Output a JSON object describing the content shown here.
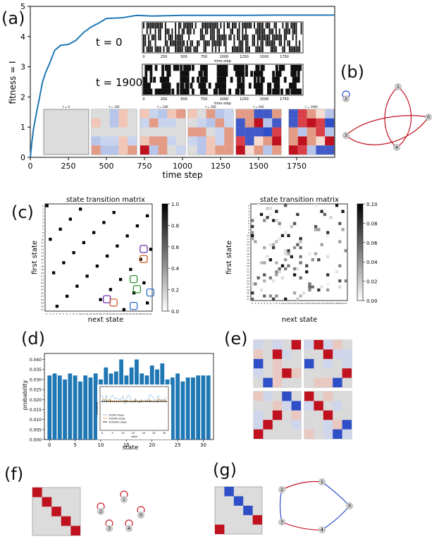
{
  "panels": {
    "a": "(a)",
    "b": "(b)",
    "c": "(c)",
    "d": "(d)",
    "e": "(e)",
    "f": "(f)",
    "g": "(g)"
  },
  "colors": {
    "line": "#1f77b4",
    "bar": "#1f77b4",
    "red": "#c0111f",
    "blue": "#2f4fc8",
    "grid": "#d8d8d8"
  },
  "chart_data": [
    {
      "type": "line",
      "panel": "a",
      "xlabel": "time step",
      "ylabel": "fitness = I",
      "xlim": [
        0,
        2000
      ],
      "ylim": [
        0,
        5
      ],
      "xticks": [
        "0",
        "250",
        "500",
        "750",
        "1000",
        "1250",
        "1500",
        "1750"
      ],
      "yticks": [
        "0",
        "1",
        "2",
        "3",
        "4",
        "5"
      ],
      "series": [
        {
          "x": [
            0,
            10,
            20,
            40,
            60,
            80,
            100,
            130,
            160,
            200,
            250,
            300,
            350,
            400,
            450,
            500,
            600,
            700,
            800,
            900,
            1000,
            1200,
            1400,
            1600,
            1800,
            2000
          ],
          "values": [
            0,
            0.5,
            0.9,
            1.5,
            2.0,
            2.5,
            2.8,
            3.2,
            3.5,
            3.7,
            3.75,
            3.9,
            4.1,
            4.3,
            4.5,
            4.6,
            4.65,
            4.68,
            4.68,
            4.69,
            4.7,
            4.7,
            4.7,
            4.71,
            4.71,
            4.71
          ]
        }
      ],
      "insets": [
        {
          "label": "t = 0",
          "xlabel": "time step",
          "xticks": [
            "0",
            "250",
            "500",
            "750",
            "1000",
            "1250",
            "1500",
            "1750"
          ]
        },
        {
          "label": "t = 1900",
          "xlabel": "time step",
          "xticks": [
            "0",
            "250",
            "500",
            "750",
            "1000",
            "1250",
            "1500",
            "1750"
          ]
        }
      ],
      "snapshots": [
        "t = 0",
        "t = 100",
        "t = 200",
        "t = 300",
        "t = 400",
        "t = 1900"
      ]
    },
    {
      "type": "heatmap",
      "panel": "c-left",
      "title": "state transition matrix",
      "xlabel": "next state",
      "ylabel": "first state",
      "colorbar_ticks": [
        "0.0",
        "0.2",
        "0.4",
        "0.6",
        "0.8",
        "1.0"
      ],
      "peaks": [
        [
          0,
          0
        ],
        [
          1,
          10
        ],
        [
          2,
          20
        ],
        [
          3,
          30
        ],
        [
          4,
          7
        ],
        [
          5,
          17
        ],
        [
          6,
          27
        ],
        [
          7,
          4
        ],
        [
          8,
          14
        ],
        [
          9,
          24
        ],
        [
          10,
          1
        ],
        [
          11,
          11
        ],
        [
          12,
          21
        ],
        [
          13,
          31
        ],
        [
          14,
          8
        ],
        [
          15,
          18
        ],
        [
          16,
          28
        ],
        [
          17,
          5
        ],
        [
          18,
          15
        ],
        [
          19,
          25
        ],
        [
          20,
          2
        ],
        [
          21,
          12
        ],
        [
          22,
          22
        ],
        [
          23,
          29
        ],
        [
          24,
          9
        ],
        [
          25,
          19
        ],
        [
          26,
          26
        ],
        [
          27,
          6
        ],
        [
          28,
          16
        ],
        [
          29,
          30
        ],
        [
          30,
          3
        ],
        [
          31,
          23
        ]
      ]
    },
    {
      "type": "heatmap",
      "panel": "c-right",
      "title": "state transition matrix",
      "xlabel": "next state",
      "ylabel": "first state",
      "colorbar_ticks": [
        "0.00",
        "0.02",
        "0.04",
        "0.06",
        "0.08",
        "0.10"
      ]
    },
    {
      "type": "bar",
      "panel": "d",
      "xlabel": "state",
      "ylabel": "probability",
      "ylim": [
        0,
        0.043
      ],
      "yticks": [
        "0.000",
        "0.005",
        "0.010",
        "0.015",
        "0.020",
        "0.025",
        "0.030",
        "0.035",
        "0.040"
      ],
      "xticks": [
        "0",
        "5",
        "10",
        "15",
        "20",
        "25",
        "30"
      ],
      "categories": [
        0,
        1,
        2,
        3,
        4,
        5,
        6,
        7,
        8,
        9,
        10,
        11,
        12,
        13,
        14,
        15,
        16,
        17,
        18,
        19,
        20,
        21,
        22,
        23,
        24,
        25,
        26,
        27,
        28,
        29,
        30,
        31
      ],
      "values": [
        0.032,
        0.033,
        0.032,
        0.03,
        0.033,
        0.032,
        0.029,
        0.032,
        0.031,
        0.033,
        0.03,
        0.036,
        0.033,
        0.034,
        0.04,
        0.032,
        0.036,
        0.04,
        0.033,
        0.032,
        0.037,
        0.035,
        0.038,
        0.03,
        0.031,
        0.033,
        0.029,
        0.031,
        0.031,
        0.032,
        0.032,
        0.032
      ],
      "inset": {
        "xlabel": "state",
        "ylabel": "probability",
        "legend": [
          "10000 steps",
          "100000 steps",
          "1000000 steps"
        ],
        "xticks": [
          "0",
          "5",
          "10",
          "15",
          "20",
          "25",
          "30"
        ]
      }
    }
  ],
  "graph_b": {
    "nodes": [
      "0",
      "1",
      "2",
      "3",
      "4"
    ]
  },
  "graph_f": {
    "nodes": [
      "0",
      "1",
      "2",
      "3",
      "4"
    ]
  },
  "graph_g": {
    "nodes": [
      "0",
      "1",
      "2",
      "3",
      "4"
    ]
  }
}
